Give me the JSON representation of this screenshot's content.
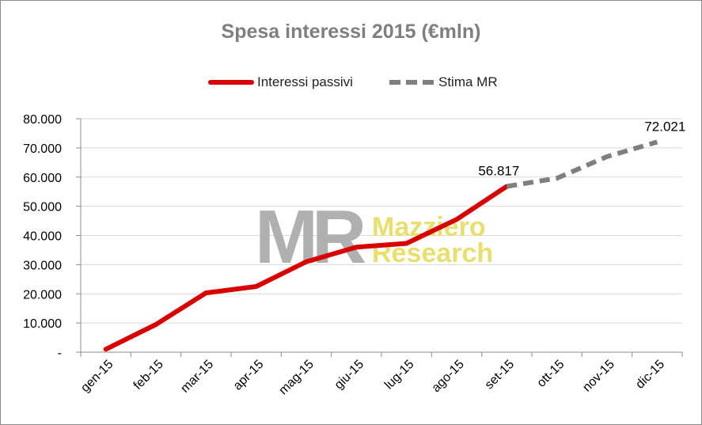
{
  "chart_data": {
    "type": "line",
    "title": "Spesa interessi 2015 (€mln)",
    "categories": [
      "gen-15",
      "feb-15",
      "mar-15",
      "apr-15",
      "mag-15",
      "giu-15",
      "lug-15",
      "ago-15",
      "set-15",
      "ott-15",
      "nov-15",
      "dic-15"
    ],
    "series": [
      {
        "name": "Interessi passivi",
        "color": "#d90000",
        "style": "solid",
        "values": [
          1000,
          9500,
          20300,
          22500,
          31000,
          36000,
          37300,
          45500,
          56817,
          null,
          null,
          null
        ]
      },
      {
        "name": "Stima MR",
        "color": "#7f7f7f",
        "style": "dashed",
        "values": [
          null,
          null,
          null,
          null,
          null,
          null,
          null,
          null,
          56817,
          59600,
          67000,
          72021
        ]
      }
    ],
    "ylim": [
      0,
      80000
    ],
    "yticks": [
      0,
      10000,
      20000,
      30000,
      40000,
      50000,
      60000,
      70000,
      80000
    ],
    "ytick_labels": [
      "-",
      "10.000",
      "20.000",
      "30.000",
      "40.000",
      "50.000",
      "60.000",
      "70.000",
      "80.000"
    ],
    "annotations": [
      {
        "category": "set-15",
        "value": 56817,
        "text": "56.817"
      },
      {
        "category": "dic-15",
        "value": 72021,
        "text": "72.021"
      }
    ],
    "grid": "horizontal",
    "legend_position": "top",
    "watermark": {
      "logo": "MR",
      "line1": "Mazziero",
      "line2": "Research"
    }
  }
}
